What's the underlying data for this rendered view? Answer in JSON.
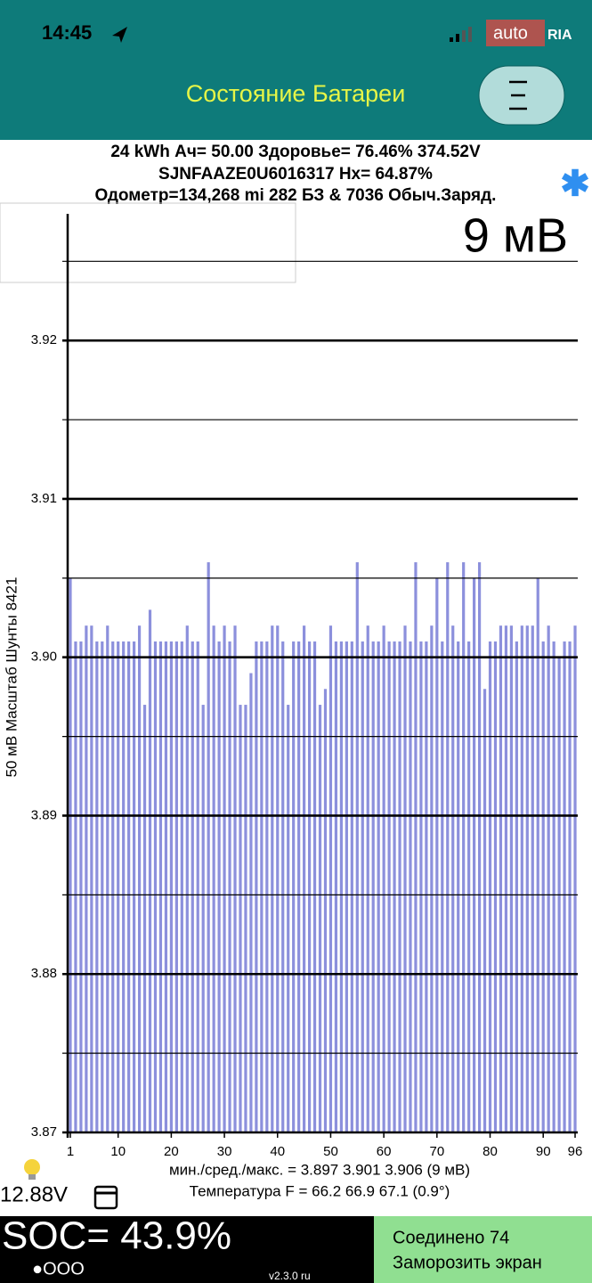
{
  "status_bar": {
    "time": "14:45",
    "logo_left": "auto",
    "logo_right": "RIA"
  },
  "header": {
    "title": "Состояние Батареи"
  },
  "info": {
    "line1": "24 kWh  Ач= 50.00  Здоровье= 76.46%   374.52V",
    "line2": "SJNFAAZE0U6016317   Hx= 64.87%",
    "line3": "Одометр=134,268 mi 282 БЗ & 7036 Обыч.Заряд."
  },
  "chart_data": {
    "type": "bar",
    "annotation": "9 мВ",
    "y_label": "50 мВ Масштаб   Шунты 8421",
    "color": "#8c90dc",
    "x": [
      1,
      2,
      3,
      4,
      5,
      6,
      7,
      8,
      9,
      10,
      11,
      12,
      13,
      14,
      15,
      16,
      17,
      18,
      19,
      20,
      21,
      22,
      23,
      24,
      25,
      26,
      27,
      28,
      29,
      30,
      31,
      32,
      33,
      34,
      35,
      36,
      37,
      38,
      39,
      40,
      41,
      42,
      43,
      44,
      45,
      46,
      47,
      48,
      49,
      50,
      51,
      52,
      53,
      54,
      55,
      56,
      57,
      58,
      59,
      60,
      61,
      62,
      63,
      64,
      65,
      66,
      67,
      68,
      69,
      70,
      71,
      72,
      73,
      74,
      75,
      76,
      77,
      78,
      79,
      80,
      81,
      82,
      83,
      84,
      85,
      86,
      87,
      88,
      89,
      90,
      91,
      92,
      93,
      94,
      95,
      96
    ],
    "values": [
      3.905,
      3.901,
      3.901,
      3.902,
      3.902,
      3.901,
      3.901,
      3.902,
      3.901,
      3.901,
      3.901,
      3.901,
      3.901,
      3.902,
      3.897,
      3.903,
      3.901,
      3.901,
      3.901,
      3.901,
      3.901,
      3.901,
      3.902,
      3.901,
      3.901,
      3.897,
      3.906,
      3.902,
      3.901,
      3.902,
      3.901,
      3.902,
      3.897,
      3.897,
      3.899,
      3.901,
      3.901,
      3.901,
      3.902,
      3.902,
      3.901,
      3.897,
      3.901,
      3.901,
      3.902,
      3.901,
      3.901,
      3.897,
      3.898,
      3.902,
      3.901,
      3.901,
      3.901,
      3.901,
      3.906,
      3.901,
      3.902,
      3.901,
      3.901,
      3.902,
      3.901,
      3.901,
      3.901,
      3.902,
      3.901,
      3.906,
      3.901,
      3.901,
      3.902,
      3.905,
      3.901,
      3.906,
      3.902,
      3.901,
      3.906,
      3.901,
      3.905,
      3.906,
      3.898,
      3.901,
      3.901,
      3.902,
      3.902,
      3.902,
      3.901,
      3.902,
      3.902,
      3.902,
      3.905,
      3.901,
      3.902,
      3.901,
      3.9,
      3.901,
      3.901,
      3.902
    ],
    "xlim": [
      0.5,
      96.5
    ],
    "xticks": [
      1,
      10,
      20,
      30,
      40,
      50,
      60,
      70,
      80,
      90,
      96
    ],
    "ylim": [
      3.87,
      3.928
    ],
    "yticks": [
      3.87,
      3.88,
      3.89,
      {
        "value": 3.9,
        "label": "3.90"
      },
      3.91,
      3.92
    ],
    "minor_yticks": [
      3.875,
      3.885,
      3.895,
      3.905,
      3.915,
      3.925
    ],
    "grid": true
  },
  "stats": {
    "minmax": "мин./сред./макс. = 3.897 3.901 3.906  (9 мВ)",
    "temperature": "Температура F = 66.2  66.9  67.1  (0.9°)",
    "voltage": "12.88V"
  },
  "footer": {
    "soc": "SOC= 43.9%",
    "dots": "●OOO",
    "version": "v2.3.0 ru",
    "connected": "Соединено 74",
    "freeze": "Заморозить экран"
  }
}
